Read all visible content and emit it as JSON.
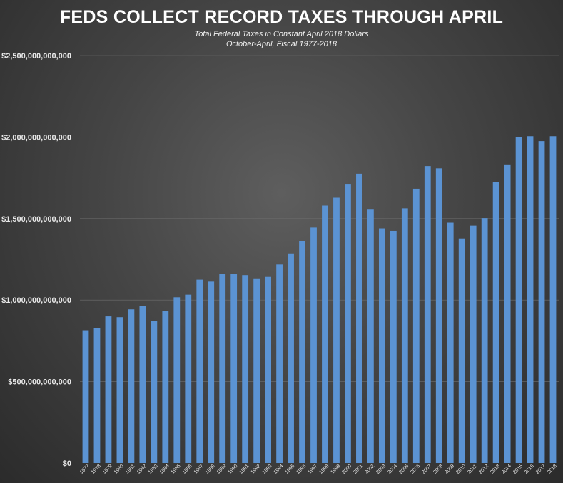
{
  "chart_data": {
    "type": "bar",
    "title": "FEDS COLLECT RECORD TAXES THROUGH APRIL",
    "subtitle": [
      "Total Federal Taxes in Constant April 2018 Dollars",
      "October-April,  Fiscal 1977-2018"
    ],
    "xlabel": "",
    "ylabel": "",
    "ylim": [
      0,
      2500000000000
    ],
    "yticks": [
      0,
      500000000000,
      1000000000000,
      1500000000000,
      2000000000000,
      2500000000000
    ],
    "ytick_labels": [
      "$0",
      "$500,000,000,000",
      "$1,000,000,000,000",
      "$1,500,000,000,000",
      "$2,000,000,000,000",
      "$2,500,000,000,000"
    ],
    "grid": true,
    "bar_color": "#5b93d3",
    "categories": [
      "1977",
      "1978",
      "1979",
      "1980",
      "1981",
      "1982",
      "1983",
      "1984",
      "1985",
      "1986",
      "1987",
      "1988",
      "1989",
      "1990",
      "1991",
      "1992",
      "1993",
      "1994",
      "1995",
      "1996",
      "1997",
      "1998",
      "1999",
      "2000",
      "2001",
      "2002",
      "2003",
      "2004",
      "2005",
      "2006",
      "2007",
      "2008",
      "2009",
      "2010",
      "2011",
      "2012",
      "2013",
      "2014",
      "2015",
      "2016",
      "2017",
      "2018"
    ],
    "values": [
      815000000000,
      828000000000,
      900000000000,
      895000000000,
      943000000000,
      963000000000,
      872000000000,
      935000000000,
      1017000000000,
      1033000000000,
      1125000000000,
      1113000000000,
      1161000000000,
      1161000000000,
      1153000000000,
      1133000000000,
      1142000000000,
      1218000000000,
      1286000000000,
      1360000000000,
      1445000000000,
      1580000000000,
      1628000000000,
      1713000000000,
      1775000000000,
      1555000000000,
      1440000000000,
      1425000000000,
      1563000000000,
      1683000000000,
      1822000000000,
      1808000000000,
      1475000000000,
      1378000000000,
      1457000000000,
      1503000000000,
      1726000000000,
      1832000000000,
      2000000000000,
      2005000000000,
      1975000000000,
      2005000000000
    ]
  }
}
